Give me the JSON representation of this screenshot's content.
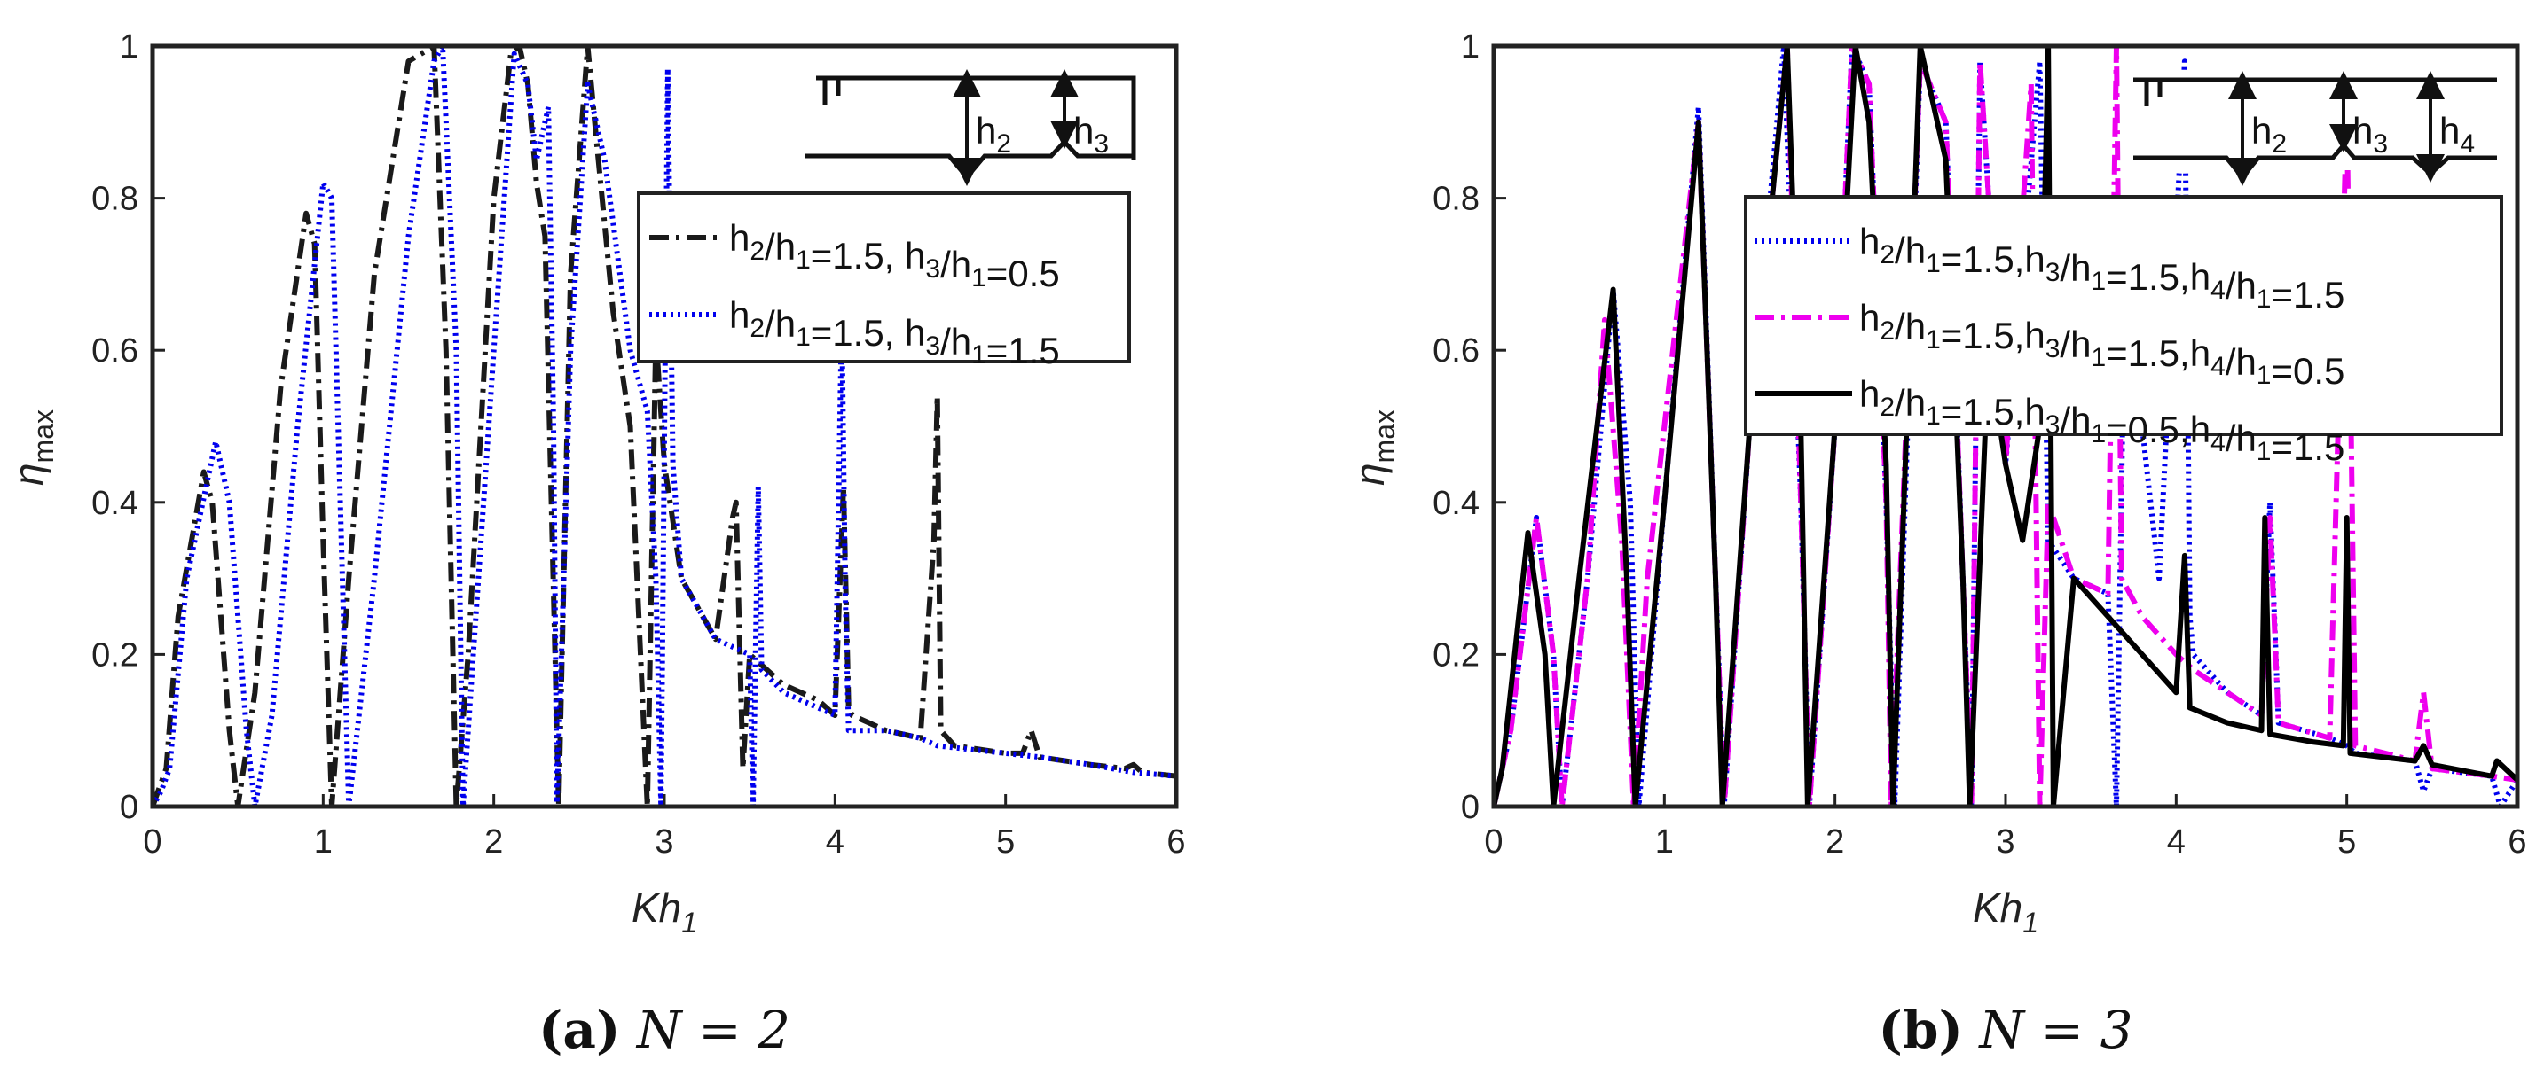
{
  "colors": {
    "black_dashdot": "#1a1a1a",
    "blue_dotted": "#0000ee",
    "magenta_dashdot": "#ee00ee",
    "black_solid": "#000000",
    "axes": "#222222"
  },
  "chart_data": [
    {
      "type": "line",
      "caption_letter": "a",
      "caption_eq": "N = 2",
      "xlabel": "Kh1",
      "ylabel": "η max",
      "xlim": [
        0,
        6
      ],
      "ylim": [
        0,
        1
      ],
      "xticks": [
        "0",
        "1",
        "2",
        "3",
        "4",
        "5",
        "6"
      ],
      "yticks": [
        "0",
        "0.2",
        "0.4",
        "0.6",
        "0.8",
        "1"
      ],
      "legend": [
        "h2/h1=1.5, h3/h1=0.5",
        "h2/h1=1.5, h3/h1=1.5"
      ],
      "inset": {
        "labels": [
          "h2",
          "h3"
        ]
      },
      "series": [
        {
          "name": "h2/h1=1.5, h3/h1=0.5",
          "style": "dashdot",
          "color": "#1a1a1a",
          "x": [
            0,
            0.08,
            0.15,
            0.3,
            0.35,
            0.45,
            0.5,
            0.6,
            0.75,
            0.9,
            0.95,
            1.0,
            1.05,
            1.15,
            1.3,
            1.5,
            1.65,
            1.72,
            1.78,
            1.85,
            2.0,
            2.1,
            2.15,
            2.2,
            2.25,
            2.3,
            2.38,
            2.45,
            2.55,
            2.6,
            2.7,
            2.8,
            2.9,
            2.95,
            3.0,
            3.1,
            3.3,
            3.4,
            3.42,
            3.46,
            3.5,
            3.7,
            3.9,
            4.0,
            4.05,
            4.08,
            4.1,
            4.3,
            4.5,
            4.58,
            4.6,
            4.62,
            4.7,
            5.0,
            5.1,
            5.15,
            5.2,
            5.5,
            5.7,
            5.75,
            5.8,
            6.0
          ],
          "y": [
            0,
            0.05,
            0.25,
            0.44,
            0.4,
            0.1,
            0,
            0.15,
            0.55,
            0.78,
            0.74,
            0.35,
            0,
            0.3,
            0.7,
            0.98,
            1.0,
            0.6,
            0,
            0.2,
            0.8,
            0.99,
            1.0,
            0.95,
            0.82,
            0.75,
            0,
            0.7,
            1.0,
            0.88,
            0.65,
            0.5,
            0,
            0.62,
            0.45,
            0.3,
            0.22,
            0.38,
            0.4,
            0.05,
            0.2,
            0.16,
            0.14,
            0.12,
            0.42,
            0.13,
            0.12,
            0.1,
            0.09,
            0.35,
            0.54,
            0.1,
            0.08,
            0.07,
            0.07,
            0.1,
            0.065,
            0.055,
            0.05,
            0.055,
            0.045,
            0.04
          ]
        },
        {
          "name": "h2/h1=1.5, h3/h1=1.5",
          "style": "dotted",
          "color": "#0000ee",
          "x": [
            0,
            0.05,
            0.1,
            0.2,
            0.37,
            0.45,
            0.55,
            0.6,
            0.7,
            0.85,
            1.0,
            1.05,
            1.1,
            1.15,
            1.3,
            1.5,
            1.65,
            1.7,
            1.78,
            1.82,
            2.0,
            2.12,
            2.2,
            2.25,
            2.32,
            2.35,
            2.37,
            2.45,
            2.55,
            2.65,
            2.8,
            2.9,
            2.95,
            2.98,
            3.02,
            3.05,
            3.1,
            3.3,
            3.5,
            3.52,
            3.55,
            3.57,
            3.7,
            3.9,
            4.0,
            4.04,
            4.06,
            4.08,
            4.3,
            4.5,
            4.6,
            5.0,
            5.2,
            5.5,
            5.75,
            6.0
          ],
          "y": [
            0,
            0.02,
            0.05,
            0.3,
            0.48,
            0.4,
            0.1,
            0,
            0.12,
            0.5,
            0.82,
            0.8,
            0.4,
            0,
            0.3,
            0.75,
            0.98,
            1.0,
            0.6,
            0,
            0.6,
            0.99,
            0.95,
            0.85,
            0.92,
            0.5,
            0,
            0.6,
            0.95,
            0.85,
            0.6,
            0.52,
            0.3,
            0,
            0.97,
            0.45,
            0.3,
            0.22,
            0.2,
            0,
            0.42,
            0.18,
            0.15,
            0.13,
            0.12,
            0.65,
            0.28,
            0.1,
            0.1,
            0.09,
            0.08,
            0.07,
            0.065,
            0.055,
            0.045,
            0.04
          ]
        }
      ]
    },
    {
      "type": "line",
      "caption_letter": "b",
      "caption_eq": "N = 3",
      "xlabel": "Kh1",
      "ylabel": "η max",
      "xlim": [
        0,
        6
      ],
      "ylim": [
        0,
        1
      ],
      "xticks": [
        "0",
        "1",
        "2",
        "3",
        "4",
        "5",
        "6"
      ],
      "yticks": [
        "0",
        "0.2",
        "0.4",
        "0.6",
        "0.8",
        "1"
      ],
      "legend": [
        "h2/h1=1.5,h3/h1=1.5,h4/h1=1.5",
        "h2/h1=1.5,h3/h1=1.5,h4/h1=0.5",
        "h2/h1=1.5,h3/h1=0.5,h4/h1=1.5"
      ],
      "inset": {
        "labels": [
          "h2",
          "h3",
          "h4"
        ]
      },
      "series": [
        {
          "name": "h2/h1=1.5,h3/h1=1.5,h4/h1=1.5",
          "style": "dotted",
          "color": "#0000ee",
          "x": [
            0,
            0.1,
            0.25,
            0.35,
            0.4,
            0.55,
            0.7,
            0.8,
            0.85,
            1.0,
            1.2,
            1.3,
            1.35,
            1.5,
            1.7,
            1.8,
            1.85,
            2.0,
            2.1,
            2.2,
            2.3,
            2.35,
            2.5,
            2.65,
            2.75,
            2.8,
            2.85,
            3.0,
            3.2,
            3.25,
            3.4,
            3.6,
            3.65,
            3.7,
            3.9,
            4.05,
            4.08,
            4.1,
            4.3,
            4.5,
            4.55,
            4.6,
            4.9,
            5.0,
            5.05,
            5.4,
            5.45,
            5.5,
            5.85,
            5.9,
            6.0
          ],
          "y": [
            0,
            0.1,
            0.38,
            0.2,
            0,
            0.3,
            0.68,
            0.4,
            0,
            0.4,
            0.92,
            0.3,
            0,
            0.5,
            1.0,
            0.4,
            0,
            0.5,
            1.0,
            0.95,
            0.4,
            0,
            0.98,
            0.9,
            0.3,
            0,
            0.98,
            0.45,
            0.98,
            0.35,
            0.3,
            0.28,
            0,
            0.7,
            0.3,
            0.98,
            0.25,
            0.2,
            0.15,
            0.12,
            0.4,
            0.11,
            0.09,
            0.08,
            0.07,
            0.06,
            0.02,
            0.05,
            0.04,
            0,
            0.035
          ]
        },
        {
          "name": "h2/h1=1.5,h3/h1=1.5,h4/h1=0.5",
          "style": "dashdot",
          "color": "#ee00ee",
          "x": [
            0,
            0.1,
            0.25,
            0.35,
            0.4,
            0.55,
            0.65,
            0.75,
            0.82,
            0.9,
            1.2,
            1.3,
            1.35,
            1.5,
            1.72,
            1.8,
            1.85,
            2.0,
            2.1,
            2.2,
            2.3,
            2.33,
            2.5,
            2.65,
            2.75,
            2.8,
            2.85,
            3.0,
            3.15,
            3.2,
            3.25,
            3.4,
            3.6,
            3.65,
            3.68,
            3.8,
            4.0,
            4.1,
            4.3,
            4.5,
            4.55,
            4.6,
            4.9,
            5.0,
            5.05,
            5.4,
            5.45,
            5.5,
            5.85,
            6.0
          ],
          "y": [
            0,
            0.1,
            0.38,
            0.2,
            0,
            0.3,
            0.64,
            0.35,
            0,
            0.3,
            0.9,
            0.3,
            0,
            0.5,
            1.0,
            0.4,
            0,
            0.5,
            1.0,
            0.95,
            0.4,
            0,
            0.98,
            0.9,
            0.3,
            0,
            0.98,
            0.45,
            0.95,
            0,
            0.4,
            0.3,
            0.28,
            1.0,
            0.3,
            0.25,
            0.2,
            0.18,
            0.15,
            0.12,
            0.38,
            0.11,
            0.09,
            0.92,
            0.08,
            0.06,
            0.15,
            0.05,
            0.04,
            0.035
          ]
        },
        {
          "name": "h2/h1=1.5,h3/h1=0.5,h4/h1=1.5",
          "style": "solid",
          "color": "#000000",
          "x": [
            0,
            0.05,
            0.2,
            0.3,
            0.35,
            0.5,
            0.7,
            0.78,
            0.83,
            1.0,
            1.2,
            1.3,
            1.34,
            1.5,
            1.72,
            1.8,
            1.84,
            2.0,
            2.12,
            2.2,
            2.3,
            2.34,
            2.5,
            2.65,
            2.75,
            2.79,
            2.9,
            3.0,
            3.1,
            3.2,
            3.25,
            3.28,
            3.4,
            3.6,
            3.8,
            4.0,
            4.05,
            4.08,
            4.3,
            4.5,
            4.52,
            4.55,
            4.8,
            4.98,
            5.0,
            5.02,
            5.4,
            5.45,
            5.5,
            5.85,
            5.88,
            6.0
          ],
          "y": [
            0,
            0.05,
            0.36,
            0.2,
            0,
            0.3,
            0.68,
            0.3,
            0,
            0.4,
            0.9,
            0.3,
            0,
            0.5,
            1.0,
            0.5,
            0,
            0.5,
            1.0,
            0.9,
            0.45,
            0,
            1.0,
            0.85,
            0.3,
            0,
            0.6,
            0.45,
            0.35,
            0.5,
            1.0,
            0,
            0.3,
            0.25,
            0.2,
            0.15,
            0.33,
            0.13,
            0.11,
            0.1,
            0.38,
            0.095,
            0.085,
            0.08,
            0.38,
            0.07,
            0.06,
            0.08,
            0.055,
            0.04,
            0.06,
            0.035
          ]
        }
      ]
    }
  ]
}
